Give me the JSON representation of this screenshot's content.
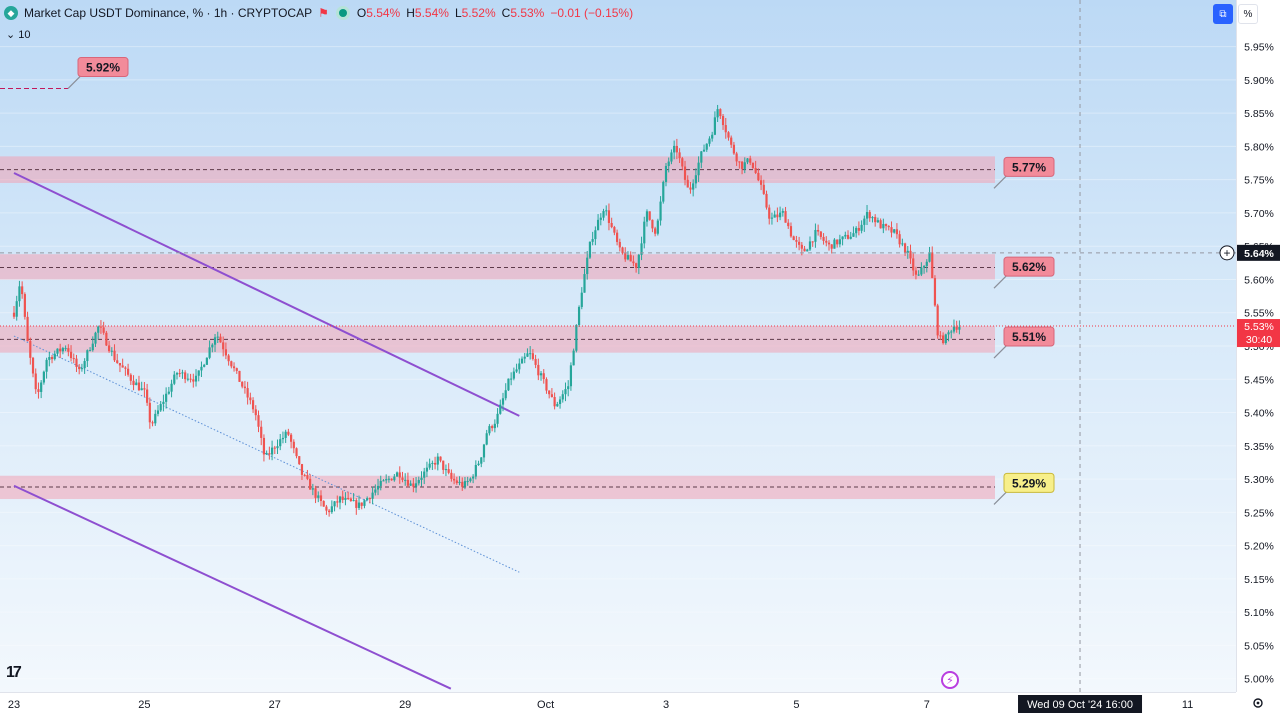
{
  "header": {
    "symbol_title": "Market Cap USDT Dominance, % · 1h · CRYPTOCAP",
    "ohlc": [
      {
        "key": "O",
        "value": "5.54%"
      },
      {
        "key": "H",
        "value": "5.54%"
      },
      {
        "key": "L",
        "value": "5.52%"
      },
      {
        "key": "C",
        "value": "5.53%"
      }
    ],
    "change": "−0.01 (−0.15%)",
    "sub_label": "10",
    "percent_button": "%"
  },
  "chart_data": {
    "type": "candlestick",
    "symbol": "USDT.D",
    "timeframe": "1h",
    "ylim": [
      4.98,
      6.02
    ],
    "xlim": [
      0,
      34.5
    ],
    "y_ticks": [
      "5.95%",
      "5.90%",
      "5.85%",
      "5.80%",
      "5.75%",
      "5.70%",
      "5.65%",
      "5.60%",
      "5.55%",
      "5.50%",
      "5.45%",
      "5.40%",
      "5.35%",
      "5.30%",
      "5.25%",
      "5.20%",
      "5.15%",
      "5.10%",
      "5.05%",
      "5.00%"
    ],
    "y_tick_values": [
      5.95,
      5.9,
      5.85,
      5.8,
      5.75,
      5.7,
      5.65,
      5.6,
      5.55,
      5.5,
      5.45,
      5.4,
      5.35,
      5.3,
      5.25,
      5.2,
      5.15,
      5.1,
      5.05,
      5.0
    ],
    "x_ticks": [
      {
        "label": "23",
        "day": 0
      },
      {
        "label": "25",
        "day": 2
      },
      {
        "label": "27",
        "day": 4
      },
      {
        "label": "29",
        "day": 6
      },
      {
        "label": "Oct",
        "day": 8
      },
      {
        "label": "3",
        "day": 10
      },
      {
        "label": "5",
        "day": 12
      },
      {
        "label": "7",
        "day": 14
      },
      {
        "label": "11",
        "day": 18
      }
    ],
    "path_points": [
      [
        0.0,
        5.55
      ],
      [
        0.1,
        5.6
      ],
      [
        0.2,
        5.51
      ],
      [
        0.35,
        5.42
      ],
      [
        0.5,
        5.48
      ],
      [
        0.8,
        5.5
      ],
      [
        1.0,
        5.46
      ],
      [
        1.3,
        5.53
      ],
      [
        1.55,
        5.48
      ],
      [
        1.8,
        5.45
      ],
      [
        2.0,
        5.43
      ],
      [
        2.1,
        5.38
      ],
      [
        2.3,
        5.42
      ],
      [
        2.5,
        5.46
      ],
      [
        2.8,
        5.45
      ],
      [
        3.1,
        5.52
      ],
      [
        3.25,
        5.49
      ],
      [
        3.5,
        5.44
      ],
      [
        3.7,
        5.4
      ],
      [
        3.85,
        5.33
      ],
      [
        4.0,
        5.35
      ],
      [
        4.2,
        5.37
      ],
      [
        4.4,
        5.31
      ],
      [
        4.6,
        5.28
      ],
      [
        4.8,
        5.25
      ],
      [
        5.0,
        5.27
      ],
      [
        5.3,
        5.26
      ],
      [
        5.6,
        5.29
      ],
      [
        5.9,
        5.31
      ],
      [
        6.1,
        5.29
      ],
      [
        6.3,
        5.31
      ],
      [
        6.5,
        5.33
      ],
      [
        6.7,
        5.3
      ],
      [
        6.9,
        5.29
      ],
      [
        7.0,
        5.3
      ],
      [
        7.15,
        5.33
      ],
      [
        7.25,
        5.37
      ],
      [
        7.4,
        5.39
      ],
      [
        7.6,
        5.45
      ],
      [
        7.9,
        5.49
      ],
      [
        8.1,
        5.45
      ],
      [
        8.3,
        5.41
      ],
      [
        8.5,
        5.44
      ],
      [
        8.6,
        5.51
      ],
      [
        8.7,
        5.58
      ],
      [
        8.85,
        5.66
      ],
      [
        9.05,
        5.71
      ],
      [
        9.3,
        5.64
      ],
      [
        9.55,
        5.62
      ],
      [
        9.7,
        5.7
      ],
      [
        9.85,
        5.67
      ],
      [
        10.0,
        5.77
      ],
      [
        10.15,
        5.8
      ],
      [
        10.35,
        5.73
      ],
      [
        10.55,
        5.79
      ],
      [
        10.7,
        5.82
      ],
      [
        10.8,
        5.86
      ],
      [
        11.0,
        5.8
      ],
      [
        11.15,
        5.77
      ],
      [
        11.3,
        5.78
      ],
      [
        11.45,
        5.74
      ],
      [
        11.6,
        5.69
      ],
      [
        11.8,
        5.7
      ],
      [
        11.95,
        5.66
      ],
      [
        12.1,
        5.64
      ],
      [
        12.3,
        5.67
      ],
      [
        12.5,
        5.65
      ],
      [
        12.7,
        5.66
      ],
      [
        12.9,
        5.67
      ],
      [
        13.1,
        5.7
      ],
      [
        13.3,
        5.68
      ],
      [
        13.5,
        5.67
      ],
      [
        13.7,
        5.64
      ],
      [
        13.85,
        5.6
      ],
      [
        14.0,
        5.63
      ],
      [
        14.05,
        5.64
      ],
      [
        14.1,
        5.58
      ],
      [
        14.18,
        5.51
      ],
      [
        14.28,
        5.51
      ],
      [
        14.4,
        5.53
      ],
      [
        14.5,
        5.53
      ]
    ],
    "zones": [
      {
        "low": 5.745,
        "high": 5.785,
        "level": 5.765
      },
      {
        "low": 5.6,
        "high": 5.638,
        "level": 5.618
      },
      {
        "low": 5.49,
        "high": 5.53,
        "level": 5.51
      },
      {
        "low": 5.27,
        "high": 5.305,
        "level": 5.288
      }
    ],
    "trendlines": [
      {
        "from": [
          0.0,
          5.76
        ],
        "to": [
          7.75,
          5.395
        ],
        "style": "solid"
      },
      {
        "from": [
          0.0,
          5.29
        ],
        "to": [
          6.7,
          4.985
        ],
        "style": "solid"
      },
      {
        "from": [
          0.0,
          5.515
        ],
        "to": [
          7.75,
          5.16
        ],
        "style": "dotted"
      }
    ],
    "level_labels": [
      {
        "text": "5.92%",
        "value": 5.92,
        "color": "red"
      },
      {
        "text": "5.77%",
        "value": 5.77,
        "color": "red"
      },
      {
        "text": "5.62%",
        "value": 5.62,
        "color": "red"
      },
      {
        "text": "5.51%",
        "value": 5.515,
        "color": "red"
      },
      {
        "text": "5.29%",
        "value": 5.295,
        "color": "yellow"
      }
    ],
    "last_price": {
      "value": 5.53,
      "label": "5.53%",
      "countdown": "30:40"
    },
    "crosshair": {
      "value": 5.64,
      "label": "5.64%",
      "time_label": "Wed 09 Oct '24   16:00",
      "day": 16.35
    }
  },
  "colors": {
    "up": "#26a69a",
    "down": "#ef5350",
    "zone_fill": "#f2a3b5",
    "trendline": "#8e4fd0",
    "label_red": "#f28b9a",
    "label_yellow": "#f7ef8a"
  }
}
